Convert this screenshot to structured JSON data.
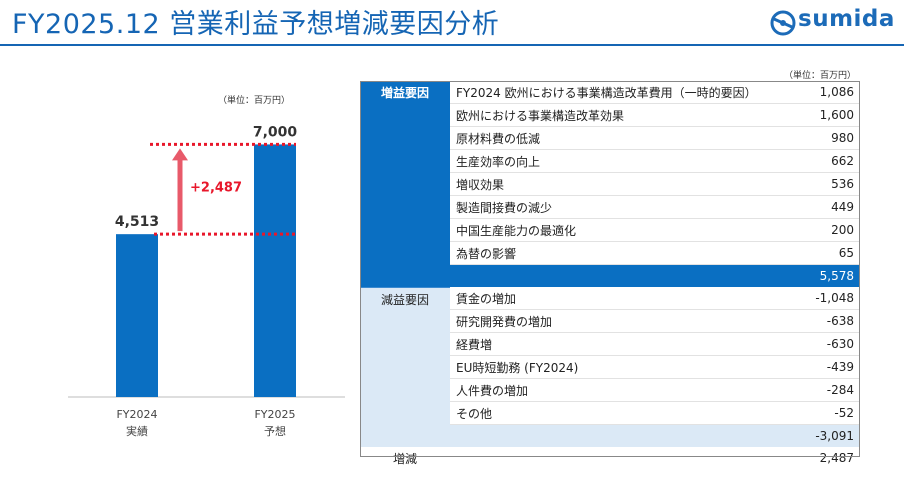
{
  "header": {
    "title": "FY2025.12 営業利益予想増減要因分析",
    "logo_text": "sumida"
  },
  "chart_unit": "（単位：百万円）",
  "table_unit": "（単位：百万円）",
  "chart_data": {
    "type": "bar",
    "categories": [
      "FY2024",
      "FY2025"
    ],
    "category_sublabels": [
      "実績",
      "予想"
    ],
    "values": [
      4513,
      7000
    ],
    "value_labels": [
      "4,513",
      "7,000"
    ],
    "ylim": [
      0,
      7400
    ],
    "difference_label": "+2,487",
    "bar_color": "#0a6fc2",
    "arrow_color": "#e85a6a",
    "dotted_line_color": "#e8172b"
  },
  "factors": {
    "increase": {
      "label": "増益要因",
      "items": [
        {
          "name": "FY2024 欧州における事業構造改革費用（一時的要因）",
          "value": "1,086"
        },
        {
          "name": "欧州における事業構造改革効果",
          "value": "1,600"
        },
        {
          "name": "原材料費の低減",
          "value": "980"
        },
        {
          "name": "生産効率の向上",
          "value": "662"
        },
        {
          "name": "増収効果",
          "value": "536"
        },
        {
          "name": "製造間接費の減少",
          "value": "449"
        },
        {
          "name": "中国生産能力の最適化",
          "value": "200"
        },
        {
          "name": "為替の影響",
          "value": "65"
        }
      ],
      "subtotal": "5,578"
    },
    "decrease": {
      "label": "減益要因",
      "items": [
        {
          "name": "賃金の増加",
          "value": "-1,048"
        },
        {
          "name": "研究開発費の増加",
          "value": "-638"
        },
        {
          "name": "経費増",
          "value": "-630"
        },
        {
          "name": "EU時短勤務 (FY2024)",
          "value": "-439"
        },
        {
          "name": "人件費の増加",
          "value": "-284"
        },
        {
          "name": "その他",
          "value": "-52"
        }
      ],
      "subtotal": "-3,091"
    },
    "total": {
      "label": "増減",
      "value": "2,487"
    }
  },
  "colors": {
    "title_blue": "#1565b4",
    "increase_bg": "#0a6fc2",
    "decrease_bg": "#dbe9f6"
  }
}
